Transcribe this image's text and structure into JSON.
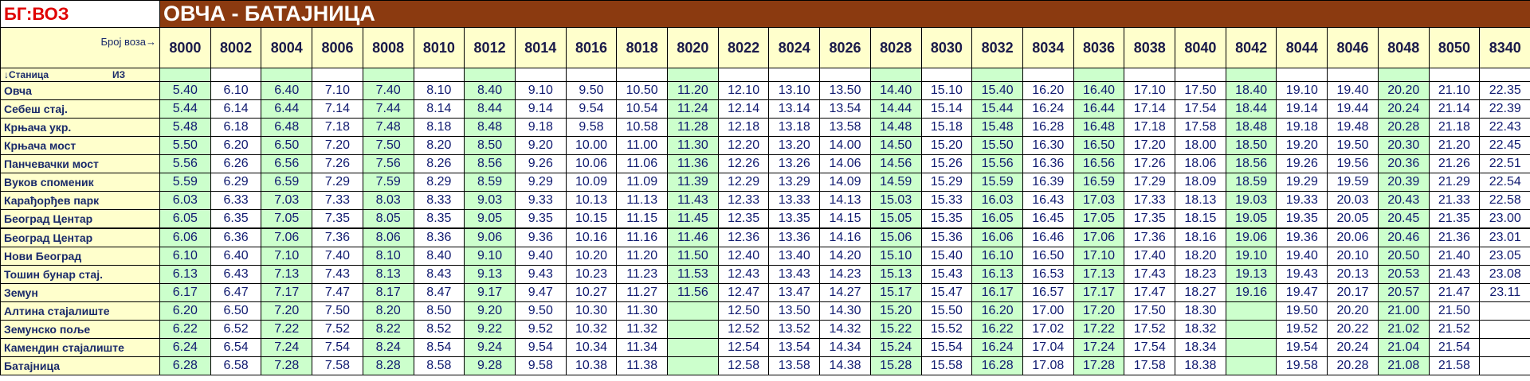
{
  "header": {
    "brand": "БГ:ВОЗ",
    "route": "ОВЧА - БАТАЈНИЦА",
    "train_label": "Број воза→",
    "station_label": "↓Станица",
    "from_label": "ИЗ"
  },
  "table": {
    "trains": [
      "8000",
      "8002",
      "8004",
      "8006",
      "8008",
      "8010",
      "8012",
      "8014",
      "8016",
      "8018",
      "8020",
      "8022",
      "8024",
      "8026",
      "8028",
      "8030",
      "8032",
      "8034",
      "8036",
      "8038",
      "8040",
      "8042",
      "8044",
      "8046",
      "8048",
      "8050",
      "8340"
    ],
    "highlight_color": "#ccffcc",
    "highlighted": [
      true,
      false,
      true,
      false,
      true,
      false,
      true,
      false,
      false,
      false,
      true,
      false,
      false,
      false,
      true,
      false,
      true,
      false,
      true,
      false,
      false,
      true,
      false,
      false,
      true,
      false,
      false
    ],
    "rows": [
      {
        "station": "Овча",
        "times": [
          "5.40",
          "6.10",
          "6.40",
          "7.10",
          "7.40",
          "8.10",
          "8.40",
          "9.10",
          "9.50",
          "10.50",
          "11.20",
          "12.10",
          "13.10",
          "13.50",
          "14.40",
          "15.10",
          "15.40",
          "16.20",
          "16.40",
          "17.10",
          "17.50",
          "18.40",
          "19.10",
          "19.40",
          "20.20",
          "21.10",
          "22.35"
        ]
      },
      {
        "station": "Себеш стај.",
        "times": [
          "5.44",
          "6.14",
          "6.44",
          "7.14",
          "7.44",
          "8.14",
          "8.44",
          "9.14",
          "9.54",
          "10.54",
          "11.24",
          "12.14",
          "13.14",
          "13.54",
          "14.44",
          "15.14",
          "15.44",
          "16.24",
          "16.44",
          "17.14",
          "17.54",
          "18.44",
          "19.14",
          "19.44",
          "20.24",
          "21.14",
          "22.39"
        ]
      },
      {
        "station": "Крњача укр.",
        "times": [
          "5.48",
          "6.18",
          "6.48",
          "7.18",
          "7.48",
          "8.18",
          "8.48",
          "9.18",
          "9.58",
          "10.58",
          "11.28",
          "12.18",
          "13.18",
          "13.58",
          "14.48",
          "15.18",
          "15.48",
          "16.28",
          "16.48",
          "17.18",
          "17.58",
          "18.48",
          "19.18",
          "19.48",
          "20.28",
          "21.18",
          "22.43"
        ]
      },
      {
        "station": "Крњача мост",
        "times": [
          "5.50",
          "6.20",
          "6.50",
          "7.20",
          "7.50",
          "8.20",
          "8.50",
          "9.20",
          "10.00",
          "11.00",
          "11.30",
          "12.20",
          "13.20",
          "14.00",
          "14.50",
          "15.20",
          "15.50",
          "16.30",
          "16.50",
          "17.20",
          "18.00",
          "18.50",
          "19.20",
          "19.50",
          "20.30",
          "21.20",
          "22.45"
        ]
      },
      {
        "station": "Панчевачки мост",
        "times": [
          "5.56",
          "6.26",
          "6.56",
          "7.26",
          "7.56",
          "8.26",
          "8.56",
          "9.26",
          "10.06",
          "11.06",
          "11.36",
          "12.26",
          "13.26",
          "14.06",
          "14.56",
          "15.26",
          "15.56",
          "16.36",
          "16.56",
          "17.26",
          "18.06",
          "18.56",
          "19.26",
          "19.56",
          "20.36",
          "21.26",
          "22.51"
        ]
      },
      {
        "station": "Вуков споменик",
        "times": [
          "5.59",
          "6.29",
          "6.59",
          "7.29",
          "7.59",
          "8.29",
          "8.59",
          "9.29",
          "10.09",
          "11.09",
          "11.39",
          "12.29",
          "13.29",
          "14.09",
          "14.59",
          "15.29",
          "15.59",
          "16.39",
          "16.59",
          "17.29",
          "18.09",
          "18.59",
          "19.29",
          "19.59",
          "20.39",
          "21.29",
          "22.54"
        ]
      },
      {
        "station": "Карађорђев парк",
        "times": [
          "6.03",
          "6.33",
          "7.03",
          "7.33",
          "8.03",
          "8.33",
          "9.03",
          "9.33",
          "10.13",
          "11.13",
          "11.43",
          "12.33",
          "13.33",
          "14.13",
          "15.03",
          "15.33",
          "16.03",
          "16.43",
          "17.03",
          "17.33",
          "18.13",
          "19.03",
          "19.33",
          "20.03",
          "20.43",
          "21.33",
          "22.58"
        ]
      },
      {
        "station": "Београд Центар",
        "times": [
          "6.05",
          "6.35",
          "7.05",
          "7.35",
          "8.05",
          "8.35",
          "9.05",
          "9.35",
          "10.15",
          "11.15",
          "11.45",
          "12.35",
          "13.35",
          "14.15",
          "15.05",
          "15.35",
          "16.05",
          "16.45",
          "17.05",
          "17.35",
          "18.15",
          "19.05",
          "19.35",
          "20.05",
          "20.45",
          "21.35",
          "23.00"
        ]
      },
      {
        "station": "Београд Центар",
        "times": [
          "6.06",
          "6.36",
          "7.06",
          "7.36",
          "8.06",
          "8.36",
          "9.06",
          "9.36",
          "10.16",
          "11.16",
          "11.46",
          "12.36",
          "13.36",
          "14.16",
          "15.06",
          "15.36",
          "16.06",
          "16.46",
          "17.06",
          "17.36",
          "18.16",
          "19.06",
          "19.36",
          "20.06",
          "20.46",
          "21.36",
          "23.01"
        ]
      },
      {
        "station": "Нови Београд",
        "times": [
          "6.10",
          "6.40",
          "7.10",
          "7.40",
          "8.10",
          "8.40",
          "9.10",
          "9.40",
          "10.20",
          "11.20",
          "11.50",
          "12.40",
          "13.40",
          "14.20",
          "15.10",
          "15.40",
          "16.10",
          "16.50",
          "17.10",
          "17.40",
          "18.20",
          "19.10",
          "19.40",
          "20.10",
          "20.50",
          "21.40",
          "23.05"
        ]
      },
      {
        "station": "Тошин бунар стај.",
        "times": [
          "6.13",
          "6.43",
          "7.13",
          "7.43",
          "8.13",
          "8.43",
          "9.13",
          "9.43",
          "10.23",
          "11.23",
          "11.53",
          "12.43",
          "13.43",
          "14.23",
          "15.13",
          "15.43",
          "16.13",
          "16.53",
          "17.13",
          "17.43",
          "18.23",
          "19.13",
          "19.43",
          "20.13",
          "20.53",
          "21.43",
          "23.08"
        ]
      },
      {
        "station": "Земун",
        "times": [
          "6.17",
          "6.47",
          "7.17",
          "7.47",
          "8.17",
          "8.47",
          "9.17",
          "9.47",
          "10.27",
          "11.27",
          "11.56",
          "12.47",
          "13.47",
          "14.27",
          "15.17",
          "15.47",
          "16.17",
          "16.57",
          "17.17",
          "17.47",
          "18.27",
          "19.16",
          "19.47",
          "20.17",
          "20.57",
          "21.47",
          "23.11"
        ]
      },
      {
        "station": "Алтина стајалиште",
        "times": [
          "6.20",
          "6.50",
          "7.20",
          "7.50",
          "8.20",
          "8.50",
          "9.20",
          "9.50",
          "10.30",
          "11.30",
          null,
          "12.50",
          "13.50",
          "14.30",
          "15.20",
          "15.50",
          "16.20",
          "17.00",
          "17.20",
          "17.50",
          "18.30",
          null,
          "19.50",
          "20.20",
          "21.00",
          "21.50",
          null
        ]
      },
      {
        "station": "Земунско поље",
        "times": [
          "6.22",
          "6.52",
          "7.22",
          "7.52",
          "8.22",
          "8.52",
          "9.22",
          "9.52",
          "10.32",
          "11.32",
          null,
          "12.52",
          "13.52",
          "14.32",
          "15.22",
          "15.52",
          "16.22",
          "17.02",
          "17.22",
          "17.52",
          "18.32",
          null,
          "19.52",
          "20.22",
          "21.02",
          "21.52",
          null
        ]
      },
      {
        "station": "Камендин стајалиште",
        "times": [
          "6.24",
          "6.54",
          "7.24",
          "7.54",
          "8.24",
          "8.54",
          "9.24",
          "9.54",
          "10.34",
          "11.34",
          null,
          "12.54",
          "13.54",
          "14.34",
          "15.24",
          "15.54",
          "16.24",
          "17.04",
          "17.24",
          "17.54",
          "18.34",
          null,
          "19.54",
          "20.24",
          "21.04",
          "21.54",
          null
        ]
      },
      {
        "station": "Батајница",
        "times": [
          "6.28",
          "6.58",
          "7.28",
          "7.58",
          "8.28",
          "8.58",
          "9.28",
          "9.58",
          "10.38",
          "11.38",
          null,
          "12.58",
          "13.58",
          "14.38",
          "15.28",
          "15.58",
          "16.28",
          "17.08",
          "17.28",
          "17.58",
          "18.38",
          null,
          "19.58",
          "20.28",
          "21.08",
          "21.58",
          null
        ]
      }
    ]
  }
}
